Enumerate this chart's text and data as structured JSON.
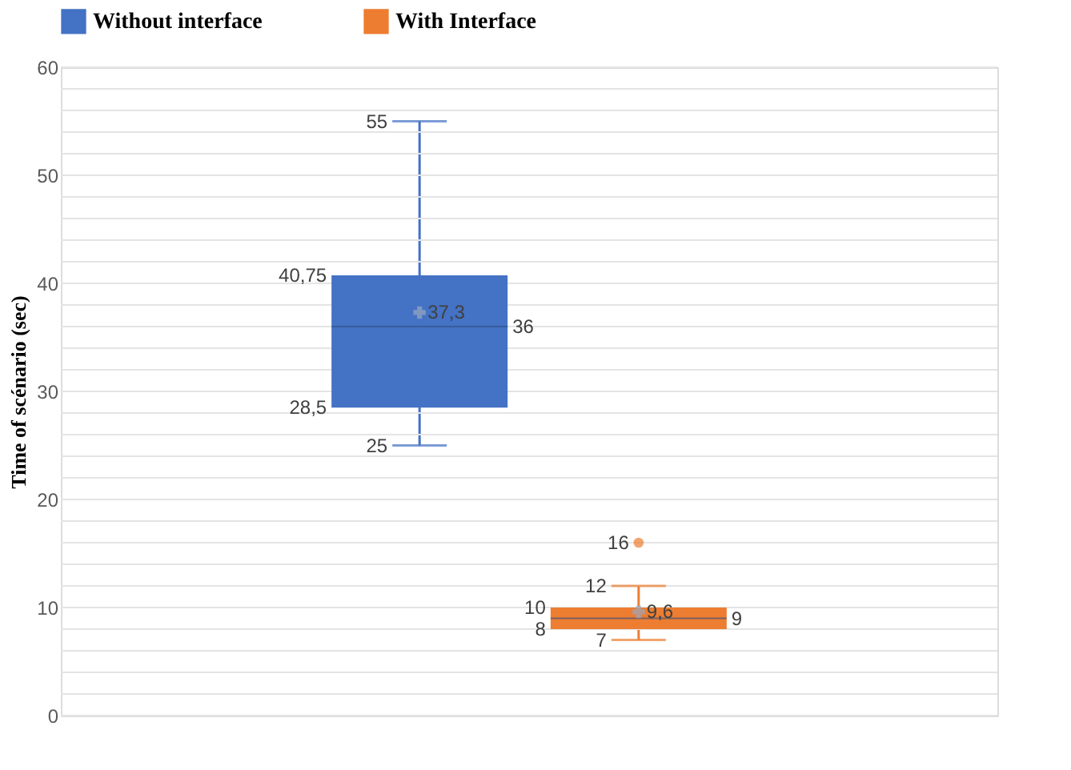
{
  "chart_data": {
    "type": "box",
    "categories": [
      null
    ],
    "ylabel": "Time of scénario (sec)",
    "ylim": [
      0,
      60
    ],
    "yticks": [
      0,
      {
        "value": 2,
        "label": null
      },
      {
        "value": 4,
        "label": null
      },
      {
        "value": 6,
        "label": null
      },
      {
        "value": 8,
        "label": null
      },
      10,
      {
        "value": 12,
        "label": null
      },
      {
        "value": 14,
        "label": null
      },
      {
        "value": 16,
        "label": null
      },
      {
        "value": 18,
        "label": null
      },
      20,
      {
        "value": 22,
        "label": null
      },
      {
        "value": 24,
        "label": null
      },
      {
        "value": 26,
        "label": null
      },
      {
        "value": 28,
        "label": null
      },
      30,
      {
        "value": 32,
        "label": null
      },
      {
        "value": 34,
        "label": null
      },
      {
        "value": 36,
        "label": null
      },
      {
        "value": 38,
        "label": null
      },
      40,
      {
        "value": 42,
        "label": null
      },
      {
        "value": 44,
        "label": null
      },
      {
        "value": 46,
        "label": null
      },
      {
        "value": 48,
        "label": null
      },
      50,
      {
        "value": 52,
        "label": null
      },
      {
        "value": 54,
        "label": null
      },
      {
        "value": 56,
        "label": null
      },
      {
        "value": 58,
        "label": null
      },
      60
    ],
    "grid": "y",
    "legend": "top",
    "annotations": [
      "55",
      "40,75",
      "37,3",
      "36",
      "28,5",
      "25",
      "12",
      "10",
      "9,6",
      "9",
      "8",
      "7",
      "16"
    ],
    "series": [
      {
        "name": "Without interface",
        "color": "#4472c4",
        "boxes": [
          {
            "low": 25,
            "q1": 28.5,
            "median": 36,
            "q3": 40.75,
            "high": 55,
            "mean": 37.3
          }
        ]
      },
      {
        "name": "With Interface",
        "color": "#ed7d31",
        "boxes": [
          {
            "low": 7,
            "q1": 8,
            "median": 9,
            "q3": 10,
            "high": 12,
            "mean": 9.6,
            "outliers": [
              16
            ]
          }
        ]
      }
    ]
  }
}
